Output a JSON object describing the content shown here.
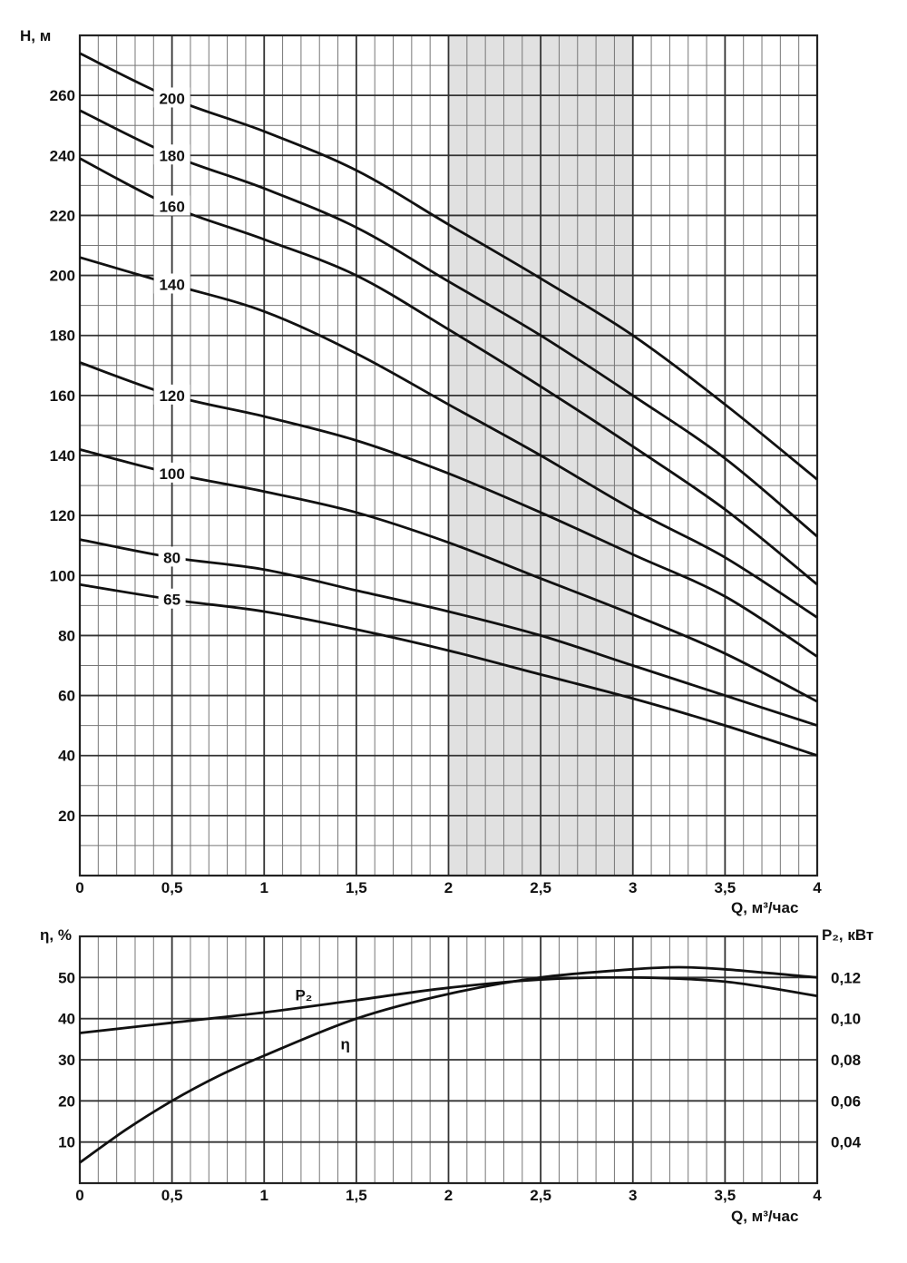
{
  "chart_data": [
    {
      "type": "line",
      "ylabel": "H, м",
      "xlabel": "Q, м³/час",
      "xlim": [
        0,
        4
      ],
      "ylim": [
        0,
        280
      ],
      "x_ticks": [
        "0",
        "0,5",
        "1",
        "1,5",
        "2",
        "2,5",
        "3",
        "3,5",
        "4"
      ],
      "y_ticks": [
        "20",
        "40",
        "60",
        "80",
        "100",
        "120",
        "140",
        "160",
        "180",
        "200",
        "220",
        "240",
        "260"
      ],
      "grid": true,
      "shaded_range": {
        "x": [
          2,
          3
        ],
        "color": "#e1e1e1"
      },
      "series": [
        {
          "name": "200",
          "label_at": 0.5,
          "points": [
            [
              0,
              274
            ],
            [
              0.5,
              259
            ],
            [
              1,
              248
            ],
            [
              1.5,
              235
            ],
            [
              2,
              217
            ],
            [
              2.5,
              199
            ],
            [
              3,
              180
            ],
            [
              3.5,
              157
            ],
            [
              4,
              132
            ]
          ]
        },
        {
          "name": "180",
          "label_at": 0.5,
          "points": [
            [
              0,
              255
            ],
            [
              0.5,
              240
            ],
            [
              1,
              229
            ],
            [
              1.5,
              216
            ],
            [
              2,
              198
            ],
            [
              2.5,
              180
            ],
            [
              3,
              160
            ],
            [
              3.5,
              139
            ],
            [
              4,
              113
            ]
          ]
        },
        {
          "name": "160",
          "label_at": 0.5,
          "points": [
            [
              0,
              239
            ],
            [
              0.5,
              223
            ],
            [
              1,
              212
            ],
            [
              1.5,
              200
            ],
            [
              2,
              182
            ],
            [
              2.5,
              163
            ],
            [
              3,
              143
            ],
            [
              3.5,
              122
            ],
            [
              4,
              97
            ]
          ]
        },
        {
          "name": "140",
          "label_at": 0.5,
          "points": [
            [
              0,
              206
            ],
            [
              0.5,
              197
            ],
            [
              1,
              188
            ],
            [
              1.5,
              174
            ],
            [
              2,
              157
            ],
            [
              2.5,
              140
            ],
            [
              3,
              122
            ],
            [
              3.5,
              106
            ],
            [
              4,
              86
            ]
          ]
        },
        {
          "name": "120",
          "label_at": 0.5,
          "points": [
            [
              0,
              171
            ],
            [
              0.5,
              160
            ],
            [
              1,
              153
            ],
            [
              1.5,
              145
            ],
            [
              2,
              134
            ],
            [
              2.5,
              121
            ],
            [
              3,
              107
            ],
            [
              3.5,
              93
            ],
            [
              4,
              73
            ]
          ]
        },
        {
          "name": "100",
          "label_at": 0.5,
          "points": [
            [
              0,
              142
            ],
            [
              0.5,
              134
            ],
            [
              1,
              128
            ],
            [
              1.5,
              121
            ],
            [
              2,
              111
            ],
            [
              2.5,
              99
            ],
            [
              3,
              87
            ],
            [
              3.5,
              74
            ],
            [
              4,
              58
            ]
          ]
        },
        {
          "name": "80",
          "label_at": 0.5,
          "points": [
            [
              0,
              112
            ],
            [
              0.5,
              106
            ],
            [
              1,
              102
            ],
            [
              1.5,
              95
            ],
            [
              2,
              88
            ],
            [
              2.5,
              80
            ],
            [
              3,
              70
            ],
            [
              3.5,
              60
            ],
            [
              4,
              50
            ]
          ]
        },
        {
          "name": "65",
          "label_at": 0.5,
          "points": [
            [
              0,
              97
            ],
            [
              0.5,
              92
            ],
            [
              1,
              88
            ],
            [
              1.5,
              82
            ],
            [
              2,
              75
            ],
            [
              2.5,
              67
            ],
            [
              3,
              59
            ],
            [
              3.5,
              50
            ],
            [
              4,
              40
            ]
          ]
        }
      ]
    },
    {
      "type": "line",
      "ylabel": "η, %",
      "y2label": "P₂, кВт",
      "xlabel": "Q, м³/час",
      "xlim": [
        0,
        4
      ],
      "ylim": [
        0,
        60
      ],
      "y2lim": [
        0.02,
        0.14
      ],
      "x_ticks": [
        "0",
        "0,5",
        "1",
        "1,5",
        "2",
        "2,5",
        "3",
        "3,5",
        "4"
      ],
      "y_ticks": [
        "10",
        "20",
        "30",
        "40",
        "50"
      ],
      "y2_ticks": [
        "0,04",
        "0,06",
        "0,08",
        "0,10",
        "0,12"
      ],
      "grid": true,
      "series": [
        {
          "name": "P₂",
          "axis": "right",
          "label_at": 1.2,
          "points": [
            [
              0,
              0.093
            ],
            [
              0.5,
              0.098
            ],
            [
              1,
              0.103
            ],
            [
              1.5,
              0.109
            ],
            [
              2,
              0.115
            ],
            [
              2.5,
              0.119
            ],
            [
              3,
              0.12
            ],
            [
              3.5,
              0.118
            ],
            [
              4,
              0.111
            ]
          ]
        },
        {
          "name": "η",
          "axis": "left",
          "label_at": 1.45,
          "points": [
            [
              0,
              5
            ],
            [
              0.25,
              13
            ],
            [
              0.5,
              20
            ],
            [
              0.75,
              26
            ],
            [
              1,
              31
            ],
            [
              1.5,
              40
            ],
            [
              2,
              46
            ],
            [
              2.5,
              50
            ],
            [
              3,
              52
            ],
            [
              3.25,
              52.5
            ],
            [
              3.5,
              52
            ],
            [
              4,
              50
            ]
          ]
        }
      ]
    }
  ]
}
